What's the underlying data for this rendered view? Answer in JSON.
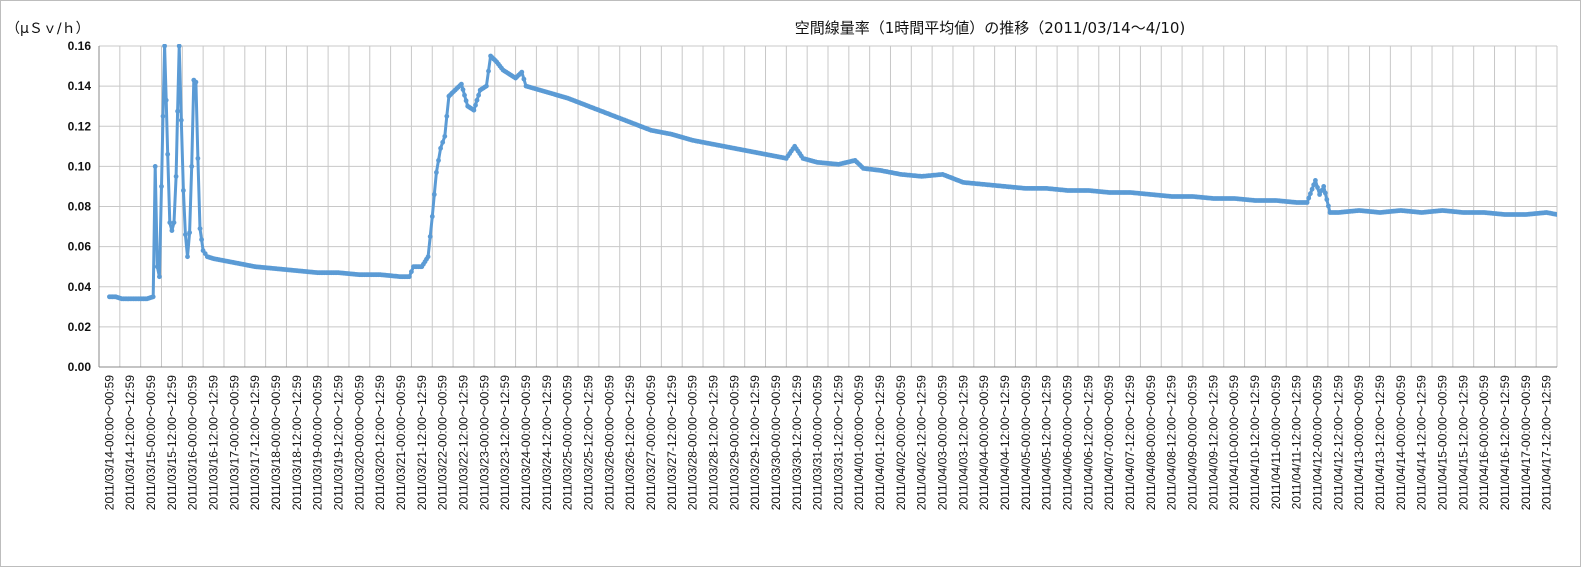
{
  "chart_data": {
    "type": "line",
    "title": "空間線量率（1時間平均値）の推移（2011/03/14～4/10)",
    "ylabel": "（μＳｖ/ｈ）",
    "xlabel": "",
    "ylim": [
      0,
      0.16
    ],
    "yticks": [
      "0.00",
      "0.02",
      "0.04",
      "0.06",
      "0.08",
      "0.10",
      "0.12",
      "0.14",
      "0.16"
    ],
    "grid": true,
    "line_color": "#5b9bd5",
    "categories": [
      "2011/03/14-00:00～00:59",
      "2011/03/14-12:00～12:59",
      "2011/03/15-00:00～00:59",
      "2011/03/15-12:00～12:59",
      "2011/03/16-00:00～00:59",
      "2011/03/16-12:00～12:59",
      "2011/03/17-00:00～00:59",
      "2011/03/17-12:00～12:59",
      "2011/03/18-00:00～00:59",
      "2011/03/18-12:00～12:59",
      "2011/03/19-00:00～00:59",
      "2011/03/19-12:00～12:59",
      "2011/03/20-00:00～00:59",
      "2011/03/20-12:00～12:59",
      "2011/03/21-00:00～00:59",
      "2011/03/21-12:00～12:59",
      "2011/03/22-00:00～00:59",
      "2011/03/22-12:00～12:59",
      "2011/03/23-00:00～00:59",
      "2011/03/23-12:00～12:59",
      "2011/03/24-00:00～00:59",
      "2011/03/24-12:00～12:59",
      "2011/03/25-00:00～00:59",
      "2011/03/25-12:00～12:59",
      "2011/03/26-00:00～00:59",
      "2011/03/26-12:00～12:59",
      "2011/03/27-00:00～00:59",
      "2011/03/27-12:00～12:59",
      "2011/03/28-00:00～00:59",
      "2011/03/28-12:00～12:59",
      "2011/03/29-00:00～00:59",
      "2011/03/29-12:00～12:59",
      "2011/03/30-00:00～00:59",
      "2011/03/30-12:00～12:59",
      "2011/03/31-00:00～00:59",
      "2011/03/31-12:00～12:59",
      "2011/04/01-00:00～00:59",
      "2011/04/01-12:00～12:59",
      "2011/04/02-00:00～00:59",
      "2011/04/02-12:00～12:59",
      "2011/04/03-00:00～00:59",
      "2011/04/03-12:00～12:59",
      "2011/04/04-00:00～00:59",
      "2011/04/04-12:00～12:59",
      "2011/04/05-00:00～00:59",
      "2011/04/05-12:00～12:59",
      "2011/04/06-00:00～00:59",
      "2011/04/06-12:00～12:59",
      "2011/04/07-00:00～00:59",
      "2011/04/07-12:00～12:59",
      "2011/04/08-00:00～00:59",
      "2011/04/08-12:00～12:59",
      "2011/04/09-00:00～00:59",
      "2011/04/09-12:00～12:59",
      "2011/04/10-00:00～00:59",
      "2011/04/10-12:00～12:59",
      "2011/04/11-00:00～00:59",
      "2011/04/11-12:00～12:59",
      "2011/04/12-00:00～00:59",
      "2011/04/12-12:00～12:59",
      "2011/04/13-00:00～00:59",
      "2011/04/13-12:00～12:59",
      "2011/04/14-00:00～00:59",
      "2011/04/14-12:00～12:59",
      "2011/04/15-00:00～00:59",
      "2011/04/15-12:00～12:59",
      "2011/04/16-00:00～00:59",
      "2011/04/16-12:00～12:59",
      "2011/04/17-00:00～00:59",
      "2011/04/17-12:00～12:59"
    ],
    "series": [
      {
        "points": [
          [
            0,
            0.035
          ],
          [
            0.3,
            0.035
          ],
          [
            0.6,
            0.034
          ],
          [
            1,
            0.034
          ],
          [
            1.4,
            0.034
          ],
          [
            1.8,
            0.034
          ],
          [
            2.1,
            0.035
          ],
          [
            2.2,
            0.1
          ],
          [
            2.3,
            0.05
          ],
          [
            2.4,
            0.045
          ],
          [
            2.5,
            0.09
          ],
          [
            2.65,
            0.16
          ],
          [
            2.8,
            0.106
          ],
          [
            2.9,
            0.072
          ],
          [
            3.0,
            0.068
          ],
          [
            3.1,
            0.072
          ],
          [
            3.2,
            0.095
          ],
          [
            3.35,
            0.16
          ],
          [
            3.45,
            0.123
          ],
          [
            3.55,
            0.088
          ],
          [
            3.65,
            0.066
          ],
          [
            3.75,
            0.055
          ],
          [
            3.85,
            0.067
          ],
          [
            3.95,
            0.1
          ],
          [
            4.05,
            0.143
          ],
          [
            4.15,
            0.142
          ],
          [
            4.25,
            0.104
          ],
          [
            4.35,
            0.069
          ],
          [
            4.5,
            0.058
          ],
          [
            4.7,
            0.055
          ],
          [
            5,
            0.054
          ],
          [
            6,
            0.052
          ],
          [
            7,
            0.05
          ],
          [
            8,
            0.049
          ],
          [
            9,
            0.048
          ],
          [
            10,
            0.047
          ],
          [
            11,
            0.047
          ],
          [
            12,
            0.046
          ],
          [
            13,
            0.046
          ],
          [
            14,
            0.045
          ],
          [
            14.4,
            0.045
          ],
          [
            14.6,
            0.05
          ],
          [
            15,
            0.05
          ],
          [
            15.3,
            0.055
          ],
          [
            15.5,
            0.075
          ],
          [
            15.7,
            0.097
          ],
          [
            15.9,
            0.109
          ],
          [
            16.1,
            0.115
          ],
          [
            16.3,
            0.135
          ],
          [
            16.6,
            0.138
          ],
          [
            16.9,
            0.141
          ],
          [
            17.2,
            0.13
          ],
          [
            17.5,
            0.128
          ],
          [
            17.8,
            0.138
          ],
          [
            18.1,
            0.14
          ],
          [
            18.3,
            0.155
          ],
          [
            18.6,
            0.152
          ],
          [
            18.9,
            0.148
          ],
          [
            19.2,
            0.146
          ],
          [
            19.5,
            0.144
          ],
          [
            19.8,
            0.147
          ],
          [
            20,
            0.14
          ],
          [
            21,
            0.137
          ],
          [
            22,
            0.134
          ],
          [
            23,
            0.13
          ],
          [
            24,
            0.126
          ],
          [
            25,
            0.122
          ],
          [
            26,
            0.118
          ],
          [
            27,
            0.116
          ],
          [
            28,
            0.113
          ],
          [
            29,
            0.111
          ],
          [
            30,
            0.109
          ],
          [
            31,
            0.107
          ],
          [
            32,
            0.105
          ],
          [
            32.5,
            0.104
          ],
          [
            32.9,
            0.11
          ],
          [
            33.3,
            0.104
          ],
          [
            34,
            0.102
          ],
          [
            35,
            0.101
          ],
          [
            35.8,
            0.103
          ],
          [
            36.2,
            0.099
          ],
          [
            37,
            0.098
          ],
          [
            38,
            0.096
          ],
          [
            39,
            0.095
          ],
          [
            40,
            0.096
          ],
          [
            41,
            0.092
          ],
          [
            42,
            0.091
          ],
          [
            43,
            0.09
          ],
          [
            44,
            0.089
          ],
          [
            45,
            0.089
          ],
          [
            46,
            0.088
          ],
          [
            47,
            0.088
          ],
          [
            48,
            0.087
          ],
          [
            49,
            0.087
          ],
          [
            50,
            0.086
          ],
          [
            51,
            0.085
          ],
          [
            52,
            0.085
          ],
          [
            53,
            0.084
          ],
          [
            54,
            0.084
          ],
          [
            55,
            0.083
          ],
          [
            56,
            0.083
          ],
          [
            57,
            0.082
          ],
          [
            57.5,
            0.082
          ],
          [
            57.9,
            0.093
          ],
          [
            58.1,
            0.086
          ],
          [
            58.3,
            0.09
          ],
          [
            58.6,
            0.077
          ],
          [
            59,
            0.077
          ],
          [
            60,
            0.078
          ],
          [
            61,
            0.077
          ],
          [
            62,
            0.078
          ],
          [
            63,
            0.077
          ],
          [
            64,
            0.078
          ],
          [
            65,
            0.077
          ],
          [
            66,
            0.077
          ],
          [
            67,
            0.076
          ],
          [
            68,
            0.076
          ],
          [
            69,
            0.077
          ],
          [
            70,
            0.075
          ],
          [
            71,
            0.076
          ],
          [
            72,
            0.075
          ],
          [
            72.5,
            0.075
          ]
        ]
      }
    ]
  }
}
